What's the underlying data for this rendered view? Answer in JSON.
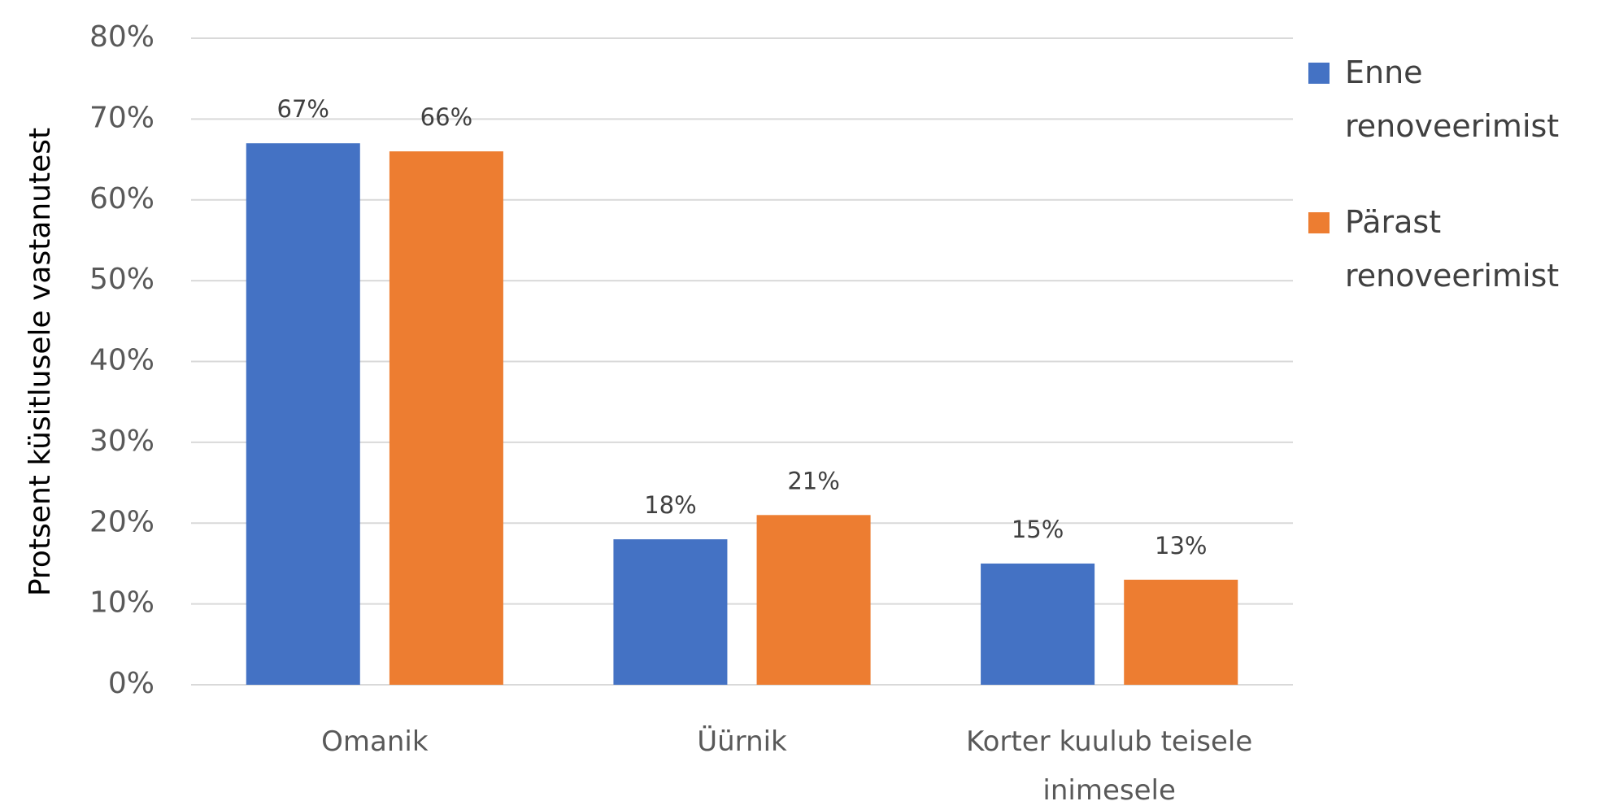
{
  "chart_data": {
    "type": "bar",
    "y_axis_label": "Protsent küsitlusele vastanutest",
    "categories": [
      "Omanik",
      "Üürnik",
      "Korter kuulub teisele inimesele"
    ],
    "series": [
      {
        "name": "Enne renoveerimist",
        "color": "#4472c4",
        "values": [
          67,
          18,
          15
        ],
        "value_labels": [
          "67%",
          "18%",
          "15%"
        ]
      },
      {
        "name": "Pärast renoveerimist",
        "color": "#ed7d31",
        "values": [
          66,
          21,
          13
        ],
        "value_labels": [
          "66%",
          "21%",
          "13%"
        ]
      }
    ],
    "ylim": [
      0,
      80
    ],
    "yticks": [
      {
        "value": 0,
        "label": "0%"
      },
      {
        "value": 10,
        "label": "10%"
      },
      {
        "value": 20,
        "label": "20%"
      },
      {
        "value": 30,
        "label": "30%"
      },
      {
        "value": 40,
        "label": "40%"
      },
      {
        "value": 50,
        "label": "50%"
      },
      {
        "value": 60,
        "label": "60%"
      },
      {
        "value": 70,
        "label": "70%"
      },
      {
        "value": 80,
        "label": "80%"
      }
    ],
    "grid": true,
    "legend": "right"
  }
}
